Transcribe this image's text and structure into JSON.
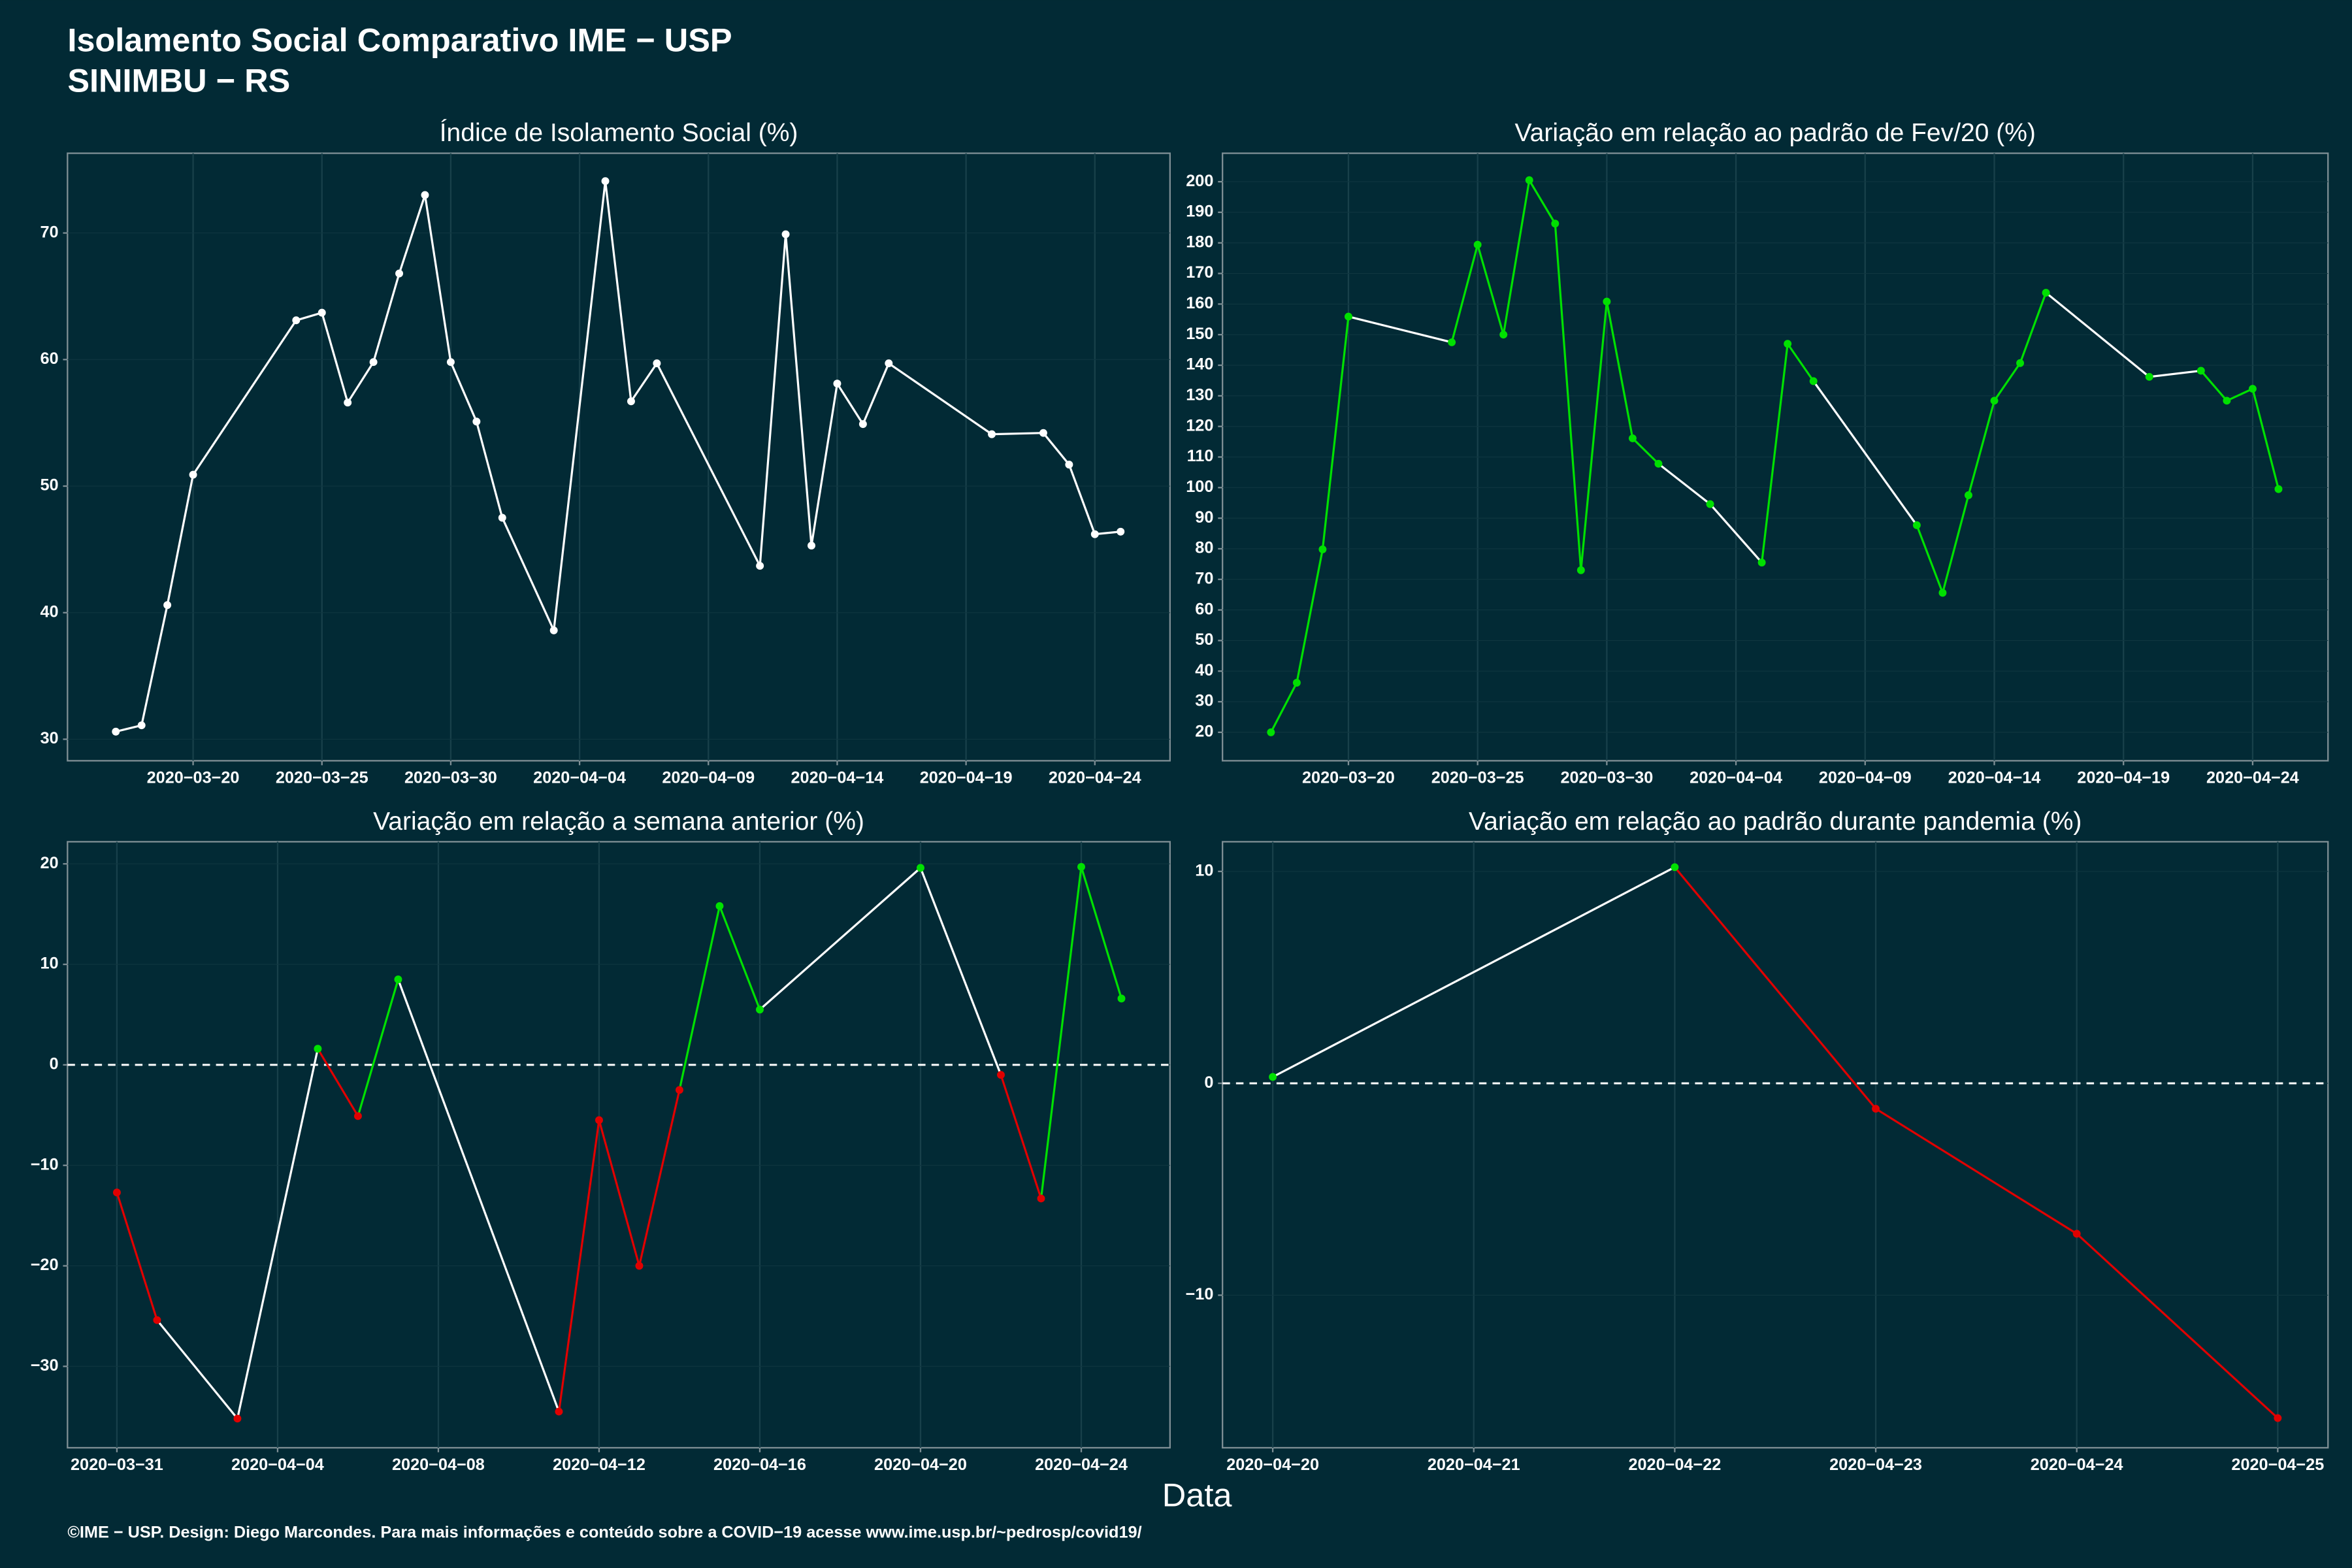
{
  "header": {
    "title": "Isolamento Social Comparativo IME − USP",
    "subtitle": "SINIMBU − RS",
    "x_label": "Data",
    "footer": "©IME − USP. Design: Diego Marcondes. Para mais informações e conteúdo sobre a COVID−19 acesse www.ime.usp.br/~pedrosp/covid19/"
  },
  "chart_data": [
    {
      "type": "line",
      "title": "Índice de Isolamento Social (%)",
      "color": "#ffffff",
      "gap_color": "#ffffff",
      "x": [
        "2020-03-17",
        "2020-03-18",
        "2020-03-19",
        "2020-03-20",
        "2020-03-24",
        "2020-03-25",
        "2020-03-26",
        "2020-03-27",
        "2020-03-28",
        "2020-03-29",
        "2020-03-30",
        "2020-03-31",
        "2020-04-01",
        "2020-04-03",
        "2020-04-05",
        "2020-04-06",
        "2020-04-07",
        "2020-04-11",
        "2020-04-12",
        "2020-04-13",
        "2020-04-14",
        "2020-04-15",
        "2020-04-16",
        "2020-04-20",
        "2020-04-22",
        "2020-04-23",
        "2020-04-24",
        "2020-04-25"
      ],
      "values": [
        30.6,
        31.1,
        40.6,
        50.9,
        63.1,
        63.7,
        56.6,
        59.8,
        66.8,
        73.0,
        59.8,
        55.1,
        47.5,
        38.6,
        74.1,
        56.7,
        59.7,
        43.7,
        69.9,
        45.3,
        58.1,
        54.9,
        59.7,
        54.1,
        54.2,
        51.7,
        46.2,
        46.4
      ],
      "xlim": [
        "2020-03-15T03:00",
        "2020-04-26T22:00"
      ],
      "xticks": [
        {
          "value": "2020-03-20",
          "label": "2020−03−20"
        },
        {
          "value": "2020-03-25",
          "label": "2020−03−25"
        },
        {
          "value": "2020-03-30",
          "label": "2020−03−30"
        },
        {
          "value": "2020-04-04",
          "label": "2020−04−04"
        },
        {
          "value": "2020-04-09",
          "label": "2020−04−09"
        },
        {
          "value": "2020-04-14",
          "label": "2020−04−14"
        },
        {
          "value": "2020-04-19",
          "label": "2020−04−19"
        },
        {
          "value": "2020-04-24",
          "label": "2020−04−24"
        }
      ],
      "ylim": [
        28.3,
        76.3
      ],
      "yticks": [
        30,
        40,
        50,
        60,
        70
      ],
      "grid": true
    },
    {
      "type": "line",
      "title": "Variação em relação ao padrão de Fev/20 (%)",
      "positive_color": "#00e000",
      "negative_color": "#e00000",
      "gap_color": "#ffffff",
      "x": [
        "2020-03-17",
        "2020-03-18",
        "2020-03-19",
        "2020-03-20",
        "2020-03-24",
        "2020-03-25",
        "2020-03-26",
        "2020-03-27",
        "2020-03-28",
        "2020-03-29",
        "2020-03-30",
        "2020-03-31",
        "2020-04-01",
        "2020-04-03",
        "2020-04-05",
        "2020-04-06",
        "2020-04-07",
        "2020-04-11",
        "2020-04-12",
        "2020-04-13",
        "2020-04-14",
        "2020-04-15",
        "2020-04-16",
        "2020-04-20",
        "2020-04-22",
        "2020-04-23",
        "2020-04-24",
        "2020-04-25"
      ],
      "values": [
        20,
        36.2,
        79.8,
        155.9,
        147.5,
        179.4,
        150,
        200.5,
        186.3,
        73,
        160.8,
        116.1,
        107.8,
        94.6,
        75.5,
        147,
        134.8,
        87.7,
        65.6,
        97.5,
        128.4,
        140.7,
        163.7,
        136.2,
        138.2,
        128.4,
        132.3,
        99.5
      ],
      "xlim": [
        "2020-03-15T03:00",
        "2020-04-26T22:00"
      ],
      "xticks": [
        {
          "value": "2020-03-20",
          "label": "2020−03−20"
        },
        {
          "value": "2020-03-25",
          "label": "2020−03−25"
        },
        {
          "value": "2020-03-30",
          "label": "2020−03−30"
        },
        {
          "value": "2020-04-04",
          "label": "2020−04−04"
        },
        {
          "value": "2020-04-09",
          "label": "2020−04−09"
        },
        {
          "value": "2020-04-14",
          "label": "2020−04−14"
        },
        {
          "value": "2020-04-19",
          "label": "2020−04−19"
        },
        {
          "value": "2020-04-24",
          "label": "2020−04−24"
        }
      ],
      "ylim": [
        10.7,
        209.3
      ],
      "yticks": [
        20,
        30,
        40,
        50,
        60,
        70,
        80,
        90,
        100,
        110,
        120,
        130,
        140,
        150,
        160,
        170,
        180,
        190,
        200
      ],
      "grid": true
    },
    {
      "type": "line",
      "title": "Variação em relação a semana anterior (%)",
      "positive_color": "#00e000",
      "negative_color": "#e00000",
      "gap_color": "#ffffff",
      "zero_line": true,
      "x": [
        "2020-03-31",
        "2020-04-01",
        "2020-04-03",
        "2020-04-05",
        "2020-04-06",
        "2020-04-07",
        "2020-04-11",
        "2020-04-12",
        "2020-04-13",
        "2020-04-14",
        "2020-04-15",
        "2020-04-16",
        "2020-04-20",
        "2020-04-22",
        "2020-04-23",
        "2020-04-24",
        "2020-04-25"
      ],
      "values": [
        -12.7,
        -25.4,
        -35.2,
        1.6,
        -5.1,
        8.5,
        -34.5,
        -5.5,
        -20,
        -2.5,
        15.8,
        5.5,
        19.6,
        -1,
        -13.3,
        19.7,
        6.6
      ],
      "xlim": [
        "2020-03-29T18:30",
        "2020-04-26T05:00"
      ],
      "xticks": [
        {
          "value": "2020-03-31",
          "label": "2020−03−31"
        },
        {
          "value": "2020-04-04",
          "label": "2020−04−04"
        },
        {
          "value": "2020-04-08",
          "label": "2020−04−08"
        },
        {
          "value": "2020-04-12",
          "label": "2020−04−12"
        },
        {
          "value": "2020-04-16",
          "label": "2020−04−16"
        },
        {
          "value": "2020-04-20",
          "label": "2020−04−20"
        },
        {
          "value": "2020-04-24",
          "label": "2020−04−24"
        }
      ],
      "ylim": [
        -38.1,
        22.2
      ],
      "yticks": [
        {
          "value": -30,
          "label": "−30"
        },
        {
          "value": -20,
          "label": "−20"
        },
        {
          "value": -10,
          "label": "−10"
        },
        0,
        10,
        20
      ],
      "grid": true
    },
    {
      "type": "line",
      "title": "Variação em relação ao padrão durante pandemia (%)",
      "positive_color": "#00e000",
      "negative_color": "#e00000",
      "gap_color": "#ffffff",
      "zero_line": true,
      "x": [
        "2020-04-20",
        "2020-04-22",
        "2020-04-23",
        "2020-04-24",
        "2020-04-25"
      ],
      "values": [
        0.3,
        10.2,
        -1.2,
        -7.1,
        -15.8
      ],
      "xlim": [
        "2020-04-19T18:00",
        "2020-04-25T06:00"
      ],
      "xticks": [
        {
          "value": "2020-04-20",
          "label": "2020−04−20"
        },
        {
          "value": "2020-04-21",
          "label": "2020−04−21"
        },
        {
          "value": "2020-04-22",
          "label": "2020−04−22"
        },
        {
          "value": "2020-04-23",
          "label": "2020−04−23"
        },
        {
          "value": "2020-04-24",
          "label": "2020−04−24"
        },
        {
          "value": "2020-04-25",
          "label": "2020−04−25"
        }
      ],
      "ylim": [
        -17.2,
        11.4
      ],
      "yticks": [
        {
          "value": -10,
          "label": "−10"
        },
        0,
        10
      ],
      "grid": true
    }
  ]
}
